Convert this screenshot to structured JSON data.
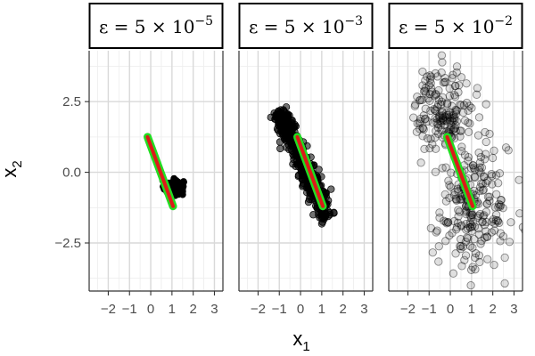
{
  "chart_data": {
    "type": "scatter",
    "layout": "faceted (3 panels, shared axes)",
    "xlabel": "x",
    "xlabel_sub": "1",
    "ylabel": "x",
    "ylabel_sub": "2",
    "xlim": [
      -2.9,
      3.4
    ],
    "ylim": [
      -4.2,
      4.3
    ],
    "x_ticks": [
      -2,
      -1,
      0,
      1,
      2,
      3
    ],
    "x_tick_labels": [
      "−2",
      "−1",
      "0",
      "1",
      "2",
      "3"
    ],
    "y_ticks": [
      2.5,
      0.0,
      -2.5
    ],
    "y_tick_labels": [
      "2.5",
      "0.0",
      "−2.5"
    ],
    "grid": true,
    "panel_background": "#ffffff",
    "grid_major_color": "#d9d9d9",
    "grid_minor_color": "#ededed",
    "line_band": {
      "description": "overlay line segment shared by all panels",
      "x": [
        -0.15,
        1.05
      ],
      "y": [
        1.25,
        -1.2
      ],
      "outer_color": "#22dd22",
      "inner_color": "#dd1a1a"
    },
    "panels": [
      {
        "strip_prefix": "ε = 5 × 10",
        "strip_exponent": "−5",
        "point_style": "solid black",
        "clusters": [
          {
            "center": [
              1.1,
              -0.55
            ],
            "spread": [
              0.22,
              0.13
            ],
            "n": 120
          }
        ]
      },
      {
        "strip_prefix": "ε = 5 × 10",
        "strip_exponent": "−3",
        "point_style": "dense black",
        "segment": {
          "x": [
            -1.0,
            1.25
          ],
          "y": [
            2.2,
            -1.65
          ],
          "spread": 0.2,
          "n": 420
        }
      },
      {
        "strip_prefix": "ε = 5 × 10",
        "strip_exponent": "−2",
        "point_style": "transparent black",
        "clusters": [
          {
            "center": [
              -0.3,
              2.2
            ],
            "spread": [
              0.7,
              0.75
            ],
            "n": 170
          },
          {
            "center": [
              1.05,
              -1.3
            ],
            "spread": [
              0.85,
              1.15
            ],
            "n": 230
          }
        ]
      }
    ]
  }
}
